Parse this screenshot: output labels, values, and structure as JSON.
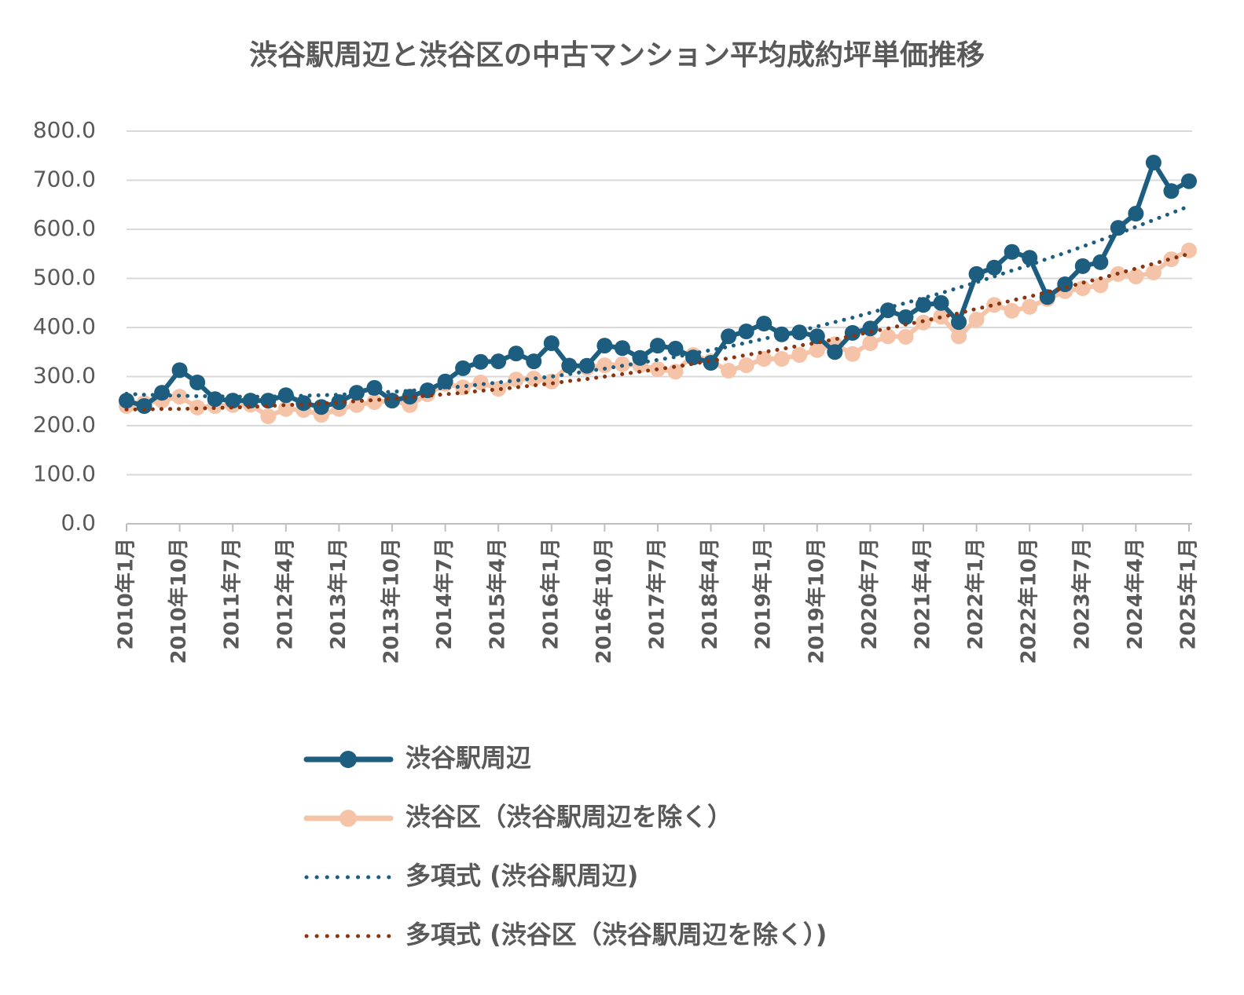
{
  "chart_data": {
    "type": "line",
    "title": "渋谷駅周辺と渋谷区の中古マンション平均成約坪単価推移",
    "categories": [
      "2010年1月",
      null,
      null,
      "2010年10月",
      null,
      null,
      "2011年7月",
      null,
      null,
      "2012年4月",
      null,
      null,
      "2013年1月",
      null,
      null,
      "2013年10月",
      null,
      null,
      "2014年7月",
      null,
      null,
      "2015年4月",
      null,
      null,
      "2016年1月",
      null,
      null,
      "2016年10月",
      null,
      null,
      "2017年7月",
      null,
      null,
      "2018年4月",
      null,
      null,
      "2019年1月",
      null,
      null,
      "2019年10月",
      null,
      null,
      "2020年7月",
      null,
      null,
      "2021年4月",
      null,
      null,
      "2022年1月",
      null,
      null,
      "2022年10月",
      null,
      null,
      "2023年7月",
      null,
      null,
      "2024年4月",
      null,
      null,
      "2025年1月"
    ],
    "ylim": [
      0,
      800
    ],
    "yticks": [
      {
        "value": 0,
        "label": "0.0"
      },
      {
        "value": 100,
        "label": "100.0"
      },
      {
        "value": 200,
        "label": "200.0"
      },
      {
        "value": 300,
        "label": "300.0"
      },
      {
        "value": 400,
        "label": "400.0"
      },
      {
        "value": 500,
        "label": "500.0"
      },
      {
        "value": 600,
        "label": "600.0"
      },
      {
        "value": 700,
        "label": "700.0"
      },
      {
        "value": 800,
        "label": "800.0"
      }
    ],
    "grid": true,
    "legend": "bottom",
    "series": [
      {
        "name": "渋谷区（渋谷駅周辺を除く）",
        "color": "#f5c4a8",
        "style": "solid",
        "markers": true,
        "values": [
          240,
          246,
          251,
          259,
          237,
          240,
          242,
          243,
          219,
          234,
          232,
          222,
          234,
          242,
          248,
          251,
          242,
          264,
          285,
          278,
          288,
          275,
          294,
          296,
          290,
          323,
          318,
          323,
          325,
          323,
          315,
          310,
          344,
          331,
          312,
          323,
          336,
          336,
          344,
          354,
          366,
          346,
          368,
          382,
          381,
          410,
          422,
          382,
          416,
          446,
          434,
          442,
          458,
          474,
          480,
          486,
          509,
          504,
          512,
          539,
          557
        ]
      },
      {
        "name": "渋谷駅周辺",
        "color": "#1d5e80",
        "style": "solid",
        "markers": true,
        "values": [
          251,
          240,
          267,
          313,
          288,
          254,
          251,
          251,
          251,
          262,
          246,
          238,
          248,
          267,
          277,
          251,
          259,
          272,
          290,
          317,
          330,
          331,
          347,
          331,
          368,
          322,
          322,
          363,
          358,
          338,
          363,
          357,
          339,
          328,
          382,
          392,
          408,
          386,
          390,
          382,
          350,
          389,
          398,
          435,
          421,
          446,
          450,
          411,
          509,
          522,
          554,
          542,
          462,
          488,
          525,
          533,
          603,
          632,
          736,
          678,
          698
        ]
      },
      {
        "name": "多項式 (渋谷駅周辺)",
        "color": "#1d5e80",
        "style": "dotted",
        "markers": false,
        "values": [
          265,
          263,
          262,
          261,
          260,
          260,
          259,
          259,
          259,
          260,
          261,
          262,
          263,
          265,
          267,
          269,
          271,
          274,
          277,
          280,
          284,
          288,
          292,
          296,
          300,
          305,
          311,
          316,
          322,
          328,
          334,
          340,
          347,
          354,
          361,
          369,
          377,
          385,
          393,
          402,
          411,
          420,
          430,
          440,
          450,
          460,
          470,
          481,
          492,
          504,
          516,
          527,
          540,
          552,
          565,
          578,
          591,
          605,
          619,
          633,
          647
        ]
      },
      {
        "name": "多項式 (渋谷区（渋谷駅周辺を除く）)",
        "color": "#8a3510",
        "style": "dotted",
        "markers": false,
        "values": [
          233,
          233,
          234,
          234,
          235,
          236,
          237,
          238,
          240,
          242,
          243,
          245,
          247,
          250,
          252,
          255,
          258,
          261,
          264,
          267,
          271,
          274,
          278,
          282,
          286,
          291,
          295,
          300,
          305,
          310,
          315,
          320,
          326,
          332,
          337,
          344,
          350,
          356,
          363,
          369,
          376,
          383,
          391,
          398,
          406,
          413,
          421,
          429,
          438,
          446,
          455,
          463,
          472,
          481,
          491,
          500,
          510,
          520,
          530,
          540,
          550
        ]
      }
    ]
  }
}
